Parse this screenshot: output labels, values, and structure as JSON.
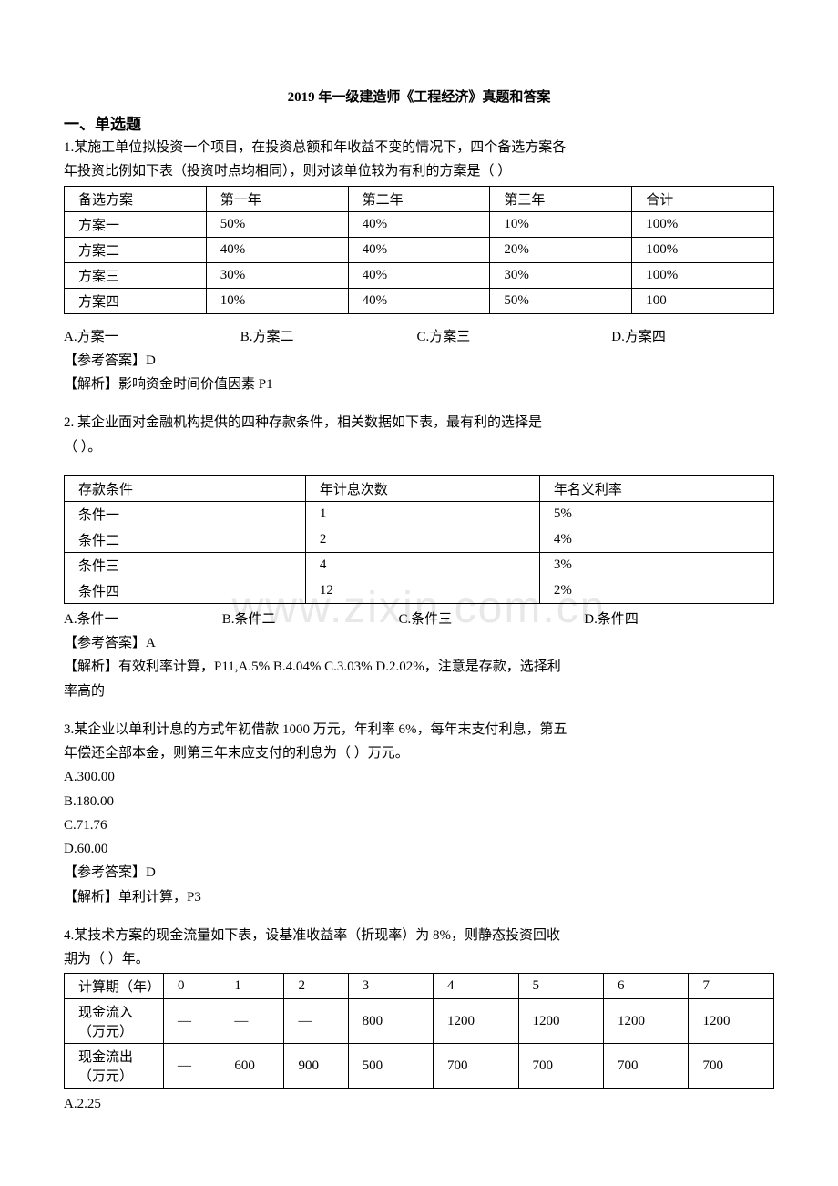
{
  "title": "2019 年一级建造师《工程经济》真题和答案",
  "sectionHead": "一、单选题",
  "q1": {
    "stem1": "1.某施工单位拟投资一个项目，在投资总额和年收益不变的情况下，四个备选方案各",
    "stem2": "年投资比例如下表（投资时点均相同），则对该单位较为有利的方案是（  ）",
    "table": {
      "colWidths": [
        "20%",
        "20%",
        "20%",
        "20%",
        "20%"
      ],
      "rows": [
        [
          "备选方案",
          "第一年",
          "第二年",
          "第三年",
          "合计"
        ],
        [
          "方案一",
          "50%",
          "40%",
          "10%",
          "100%"
        ],
        [
          "方案二",
          "40%",
          "40%",
          "20%",
          "100%"
        ],
        [
          "方案三",
          "30%",
          "  40%",
          "30%",
          "100%"
        ],
        [
          "方案四",
          "10%",
          "40%",
          "50%",
          "100"
        ]
      ]
    },
    "opts": {
      "a": "A.方案一",
      "b": "B.方案二",
      "c": "C.方案三",
      "d": "D.方案四"
    },
    "ans": "【参考答案】D",
    "exp": "【解析】影响资金时间价值因素   P1"
  },
  "q2": {
    "stem1": "2.   某企业面对金融机构提供的四种存款条件，相关数据如下表，最有利的选择是",
    "stem2": "（   ）。",
    "table": {
      "colWidths": [
        "34%",
        "33%",
        "33%"
      ],
      "rows": [
        [
          "存款条件",
          "年计息次数",
          "年名义利率"
        ],
        [
          "条件一",
          "1",
          "5%"
        ],
        [
          "条件二",
          "2",
          "4%"
        ],
        [
          "条件三",
          "4",
          "3%"
        ],
        [
          "条件四",
          "12",
          "2%"
        ]
      ]
    },
    "opts": {
      "a": "A.条件一",
      "b": "B.条件二",
      "c": "C.条件三",
      "d": "D.条件四"
    },
    "ans": "【参考答案】A",
    "exp1": "【解析】有效利率计算，P11,A.5% B.4.04% C.3.03% D.2.02%，注意是存款，选择利",
    "exp2": "率高的"
  },
  "q3": {
    "stem1": "3.某企业以单利计息的方式年初借款 1000 万元，年利率 6%，每年末支付利息，第五",
    "stem2": "年偿还全部本金，则第三年末应支付的利息为（  ）万元。",
    "a": "A.300.00",
    "b": "B.180.00",
    "c": "C.71.76",
    "d": "D.60.00",
    "ans": "【参考答案】D",
    "exp": "【解析】单利计算，P3"
  },
  "q4": {
    "stem1": "4.某技术方案的现金流量如下表，设基准收益率（折现率）为 8%，则静态投资回收",
    "stem2": "期为（  ）年。",
    "table": {
      "colWidths": [
        "14%",
        "8%",
        "9%",
        "9%",
        "12%",
        "12%",
        "12%",
        "12%",
        "12%"
      ],
      "rows": [
        [
          "计算期（年）",
          "0",
          "1",
          "2",
          "3",
          "4",
          "5",
          "6",
          "7"
        ],
        [
          "现金流入（万元）",
          "—",
          "—",
          "—",
          "800",
          "1200",
          "1200",
          "1200",
          "1200"
        ],
        [
          "现金流出（万元）",
          "—",
          "600",
          "900",
          "500",
          "700",
          "700",
          "700",
          "700"
        ]
      ]
    },
    "a": "A.2.25"
  },
  "watermark": "www.zixin.com.cn",
  "colors": {
    "text": "#000000",
    "border": "#000000",
    "bg": "#ffffff",
    "wm": "#e8e8e8"
  }
}
